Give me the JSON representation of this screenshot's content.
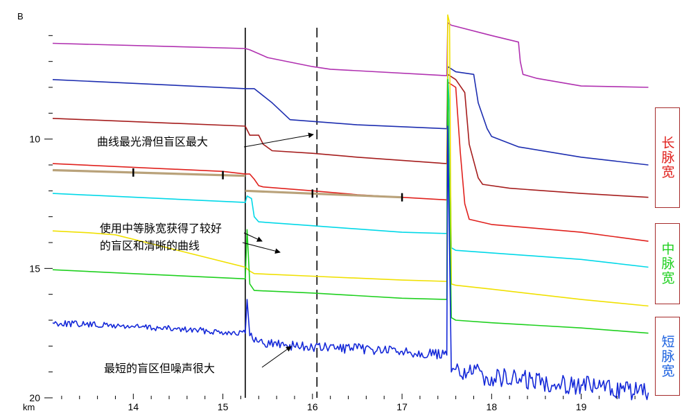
{
  "chart_data": {
    "type": "line",
    "x_unit": "km",
    "y_unit": "B",
    "xlim": [
      13.1,
      19.8
    ],
    "ylim": [
      5,
      20
    ],
    "x_ticks": [
      14,
      15,
      16,
      17,
      18,
      19
    ],
    "y_ticks": [
      10,
      15,
      20
    ],
    "vertical_markers": [
      {
        "x": 15.25,
        "style": "solid"
      },
      {
        "x": 16.05,
        "style": "dashed"
      }
    ],
    "series": [
      {
        "color": "#b030b0",
        "points": [
          [
            13.1,
            6.3
          ],
          [
            15.25,
            6.5
          ],
          [
            15.3,
            6.55
          ],
          [
            15.5,
            6.85
          ],
          [
            16.0,
            7.2
          ],
          [
            16.2,
            7.3
          ],
          [
            17.5,
            7.55
          ],
          [
            17.51,
            5.5
          ],
          [
            17.55,
            5.6
          ],
          [
            18.0,
            6.0
          ],
          [
            18.3,
            6.25
          ],
          [
            18.32,
            7.0
          ],
          [
            18.35,
            7.5
          ],
          [
            18.5,
            7.65
          ],
          [
            19.0,
            7.95
          ],
          [
            19.75,
            8.0
          ]
        ]
      },
      {
        "color": "#1c2db0",
        "points": [
          [
            13.1,
            7.7
          ],
          [
            15.25,
            8.05
          ],
          [
            15.35,
            8.05
          ],
          [
            15.55,
            8.6
          ],
          [
            15.75,
            9.25
          ],
          [
            16.5,
            9.45
          ],
          [
            17.5,
            9.6
          ],
          [
            17.51,
            7.2
          ],
          [
            17.6,
            7.4
          ],
          [
            17.8,
            7.5
          ],
          [
            17.85,
            8.6
          ],
          [
            17.95,
            9.6
          ],
          [
            18.0,
            9.9
          ],
          [
            18.3,
            10.3
          ],
          [
            19.0,
            10.7
          ],
          [
            19.75,
            11.0
          ]
        ]
      },
      {
        "color": "#a51c1c",
        "points": [
          [
            13.1,
            9.2
          ],
          [
            15.25,
            9.5
          ],
          [
            15.3,
            9.85
          ],
          [
            15.4,
            9.85
          ],
          [
            15.45,
            10.2
          ],
          [
            15.55,
            10.45
          ],
          [
            16.0,
            10.55
          ],
          [
            16.5,
            10.7
          ],
          [
            17.5,
            10.95
          ],
          [
            17.51,
            7.5
          ],
          [
            17.6,
            7.7
          ],
          [
            17.7,
            8.2
          ],
          [
            17.75,
            10.2
          ],
          [
            17.85,
            11.5
          ],
          [
            17.9,
            11.75
          ],
          [
            18.2,
            11.9
          ],
          [
            19.0,
            12.1
          ],
          [
            19.75,
            12.25
          ]
        ]
      },
      {
        "color": "#e0201c",
        "points": [
          [
            13.1,
            10.95
          ],
          [
            15.0,
            11.25
          ],
          [
            15.25,
            11.35
          ],
          [
            15.3,
            11.35
          ],
          [
            15.35,
            11.55
          ],
          [
            15.4,
            11.8
          ],
          [
            15.45,
            11.85
          ],
          [
            16.0,
            12.0
          ],
          [
            16.5,
            12.15
          ],
          [
            17.5,
            12.35
          ],
          [
            17.51,
            7.8
          ],
          [
            17.6,
            8.0
          ],
          [
            17.65,
            10.5
          ],
          [
            17.7,
            12.5
          ],
          [
            17.75,
            13.1
          ],
          [
            18.0,
            13.3
          ],
          [
            19.0,
            13.6
          ],
          [
            19.75,
            13.95
          ]
        ]
      },
      {
        "color": "#00d8e8",
        "points": [
          [
            13.1,
            12.1
          ],
          [
            15.25,
            12.45
          ],
          [
            15.27,
            12.2
          ],
          [
            15.32,
            12.3
          ],
          [
            15.35,
            13.0
          ],
          [
            15.4,
            13.2
          ],
          [
            16.0,
            13.35
          ],
          [
            17.0,
            13.6
          ],
          [
            17.5,
            13.65
          ],
          [
            17.51,
            7.5
          ],
          [
            17.53,
            9.0
          ],
          [
            17.55,
            14.2
          ],
          [
            17.6,
            14.3
          ],
          [
            18.0,
            14.4
          ],
          [
            19.0,
            14.65
          ],
          [
            19.75,
            14.95
          ]
        ]
      },
      {
        "color": "#f0e000",
        "points": [
          [
            13.1,
            13.55
          ],
          [
            13.5,
            13.62
          ],
          [
            13.8,
            13.7
          ],
          [
            15.25,
            14.95
          ],
          [
            15.3,
            15.1
          ],
          [
            15.35,
            15.2
          ],
          [
            16.0,
            15.3
          ],
          [
            17.0,
            15.45
          ],
          [
            17.5,
            15.5
          ],
          [
            17.51,
            5.2
          ],
          [
            17.53,
            5.5
          ],
          [
            17.55,
            15.6
          ],
          [
            17.6,
            15.65
          ],
          [
            18.0,
            15.8
          ],
          [
            19.0,
            16.2
          ],
          [
            19.75,
            16.45
          ]
        ]
      },
      {
        "color": "#1ed01e",
        "points": [
          [
            13.1,
            15.05
          ],
          [
            14.0,
            15.2
          ],
          [
            15.25,
            15.4
          ],
          [
            15.27,
            13.5
          ],
          [
            15.3,
            15.6
          ],
          [
            15.35,
            15.85
          ],
          [
            16.0,
            15.95
          ],
          [
            17.0,
            16.15
          ],
          [
            17.5,
            16.2
          ],
          [
            17.51,
            7.7
          ],
          [
            17.55,
            16.9
          ],
          [
            17.6,
            17.0
          ],
          [
            18.0,
            17.1
          ],
          [
            19.0,
            17.3
          ],
          [
            19.75,
            17.5
          ]
        ]
      },
      {
        "color": "#1428d8",
        "noisy": true,
        "noise": 0.12,
        "points": [
          [
            13.1,
            17.1
          ],
          [
            14.0,
            17.25
          ],
          [
            15.25,
            17.5
          ],
          [
            15.27,
            16.2
          ],
          [
            15.3,
            17.6
          ],
          [
            15.4,
            17.85
          ],
          [
            16.0,
            18.05
          ],
          [
            16.5,
            18.1
          ],
          [
            17.0,
            18.2
          ],
          [
            17.5,
            18.35
          ],
          [
            17.51,
            9.5
          ],
          [
            17.55,
            19.0
          ],
          [
            17.6,
            18.9
          ],
          [
            18.0,
            19.2
          ],
          [
            19.0,
            19.5
          ],
          [
            19.75,
            19.8
          ]
        ]
      }
    ],
    "event_markers": [
      {
        "points": [
          [
            13.1,
            11.2
          ],
          [
            15.25,
            11.42
          ]
        ],
        "ticks": [
          14.0,
          15.0
        ]
      },
      {
        "points": [
          [
            15.25,
            12.0
          ],
          [
            17.0,
            12.25
          ]
        ],
        "ticks": [
          16.0,
          17.0
        ]
      }
    ],
    "legend": [
      {
        "label": "长脉宽",
        "color": "#e0201c"
      },
      {
        "label": "中脉宽",
        "color": "#1ed01e"
      },
      {
        "label": "短脉宽",
        "color": "#1a60e0"
      }
    ],
    "annotations": [
      {
        "text": "曲线最光滑但盲区最大"
      },
      {
        "text": "使用中等脉宽获得了较好"
      },
      {
        "text": "的盲区和清晰的曲线"
      },
      {
        "text": "最短的盲区但噪声很大"
      }
    ]
  }
}
